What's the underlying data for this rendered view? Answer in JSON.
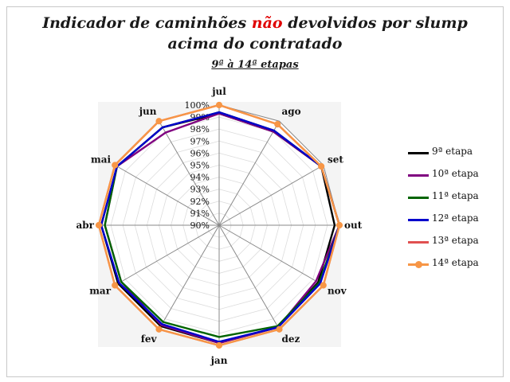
{
  "title": {
    "line1_part1": "Indicador de caminhões ",
    "line1_highlight": "não",
    "line1_part2": " devolvidos por slump",
    "line2": "acima do contratado",
    "subtitle": "9ª à 14ª etapas"
  },
  "chart_data": {
    "type": "radar",
    "categories": [
      "jul",
      "ago",
      "set",
      "out",
      "nov",
      "dez",
      "jan",
      "fev",
      "mar",
      "abr",
      "mai",
      "jun"
    ],
    "radial_ticks": [
      "90%",
      "91%",
      "92%",
      "93%",
      "94%",
      "95%",
      "96%",
      "97%",
      "98%",
      "99%",
      "100%"
    ],
    "rlim": [
      90,
      100
    ],
    "grid": true,
    "legend_position": "right",
    "series": [
      {
        "name": "9ª etapa",
        "color": "#000000",
        "values": [
          99.3,
          99.0,
          99.8,
          99.6,
          99.5,
          99.8,
          99.8,
          99.7,
          99.7,
          99.8,
          99.8,
          99.4
        ]
      },
      {
        "name": "10ª etapa",
        "color": "#800080",
        "values": [
          99.3,
          99.0,
          99.8,
          100.0,
          99.3,
          99.8,
          99.8,
          99.6,
          99.4,
          99.5,
          99.8,
          98.9
        ]
      },
      {
        "name": "11ª etapa",
        "color": "#006400",
        "values": [
          99.4,
          99.1,
          99.8,
          100.0,
          99.6,
          99.7,
          99.3,
          99.3,
          99.4,
          99.5,
          99.8,
          99.4
        ]
      },
      {
        "name": "12ª etapa",
        "color": "#0000cc",
        "values": [
          99.4,
          99.1,
          99.8,
          100.0,
          99.7,
          99.8,
          99.7,
          99.5,
          99.6,
          99.8,
          99.8,
          99.4
        ]
      },
      {
        "name": "13ª etapa",
        "color": "#e05050",
        "values": [
          100.0,
          99.7,
          99.8,
          100.0,
          100.0,
          100.0,
          100.0,
          100.0,
          100.0,
          100.0,
          100.0,
          100.0
        ]
      },
      {
        "name": "14ª etapa",
        "color": "#f79646",
        "values": [
          100.0,
          99.7,
          99.8,
          100.0,
          100.0,
          100.0,
          100.0,
          100.0,
          100.0,
          100.0,
          100.0,
          100.0
        ],
        "markers": true
      }
    ]
  }
}
